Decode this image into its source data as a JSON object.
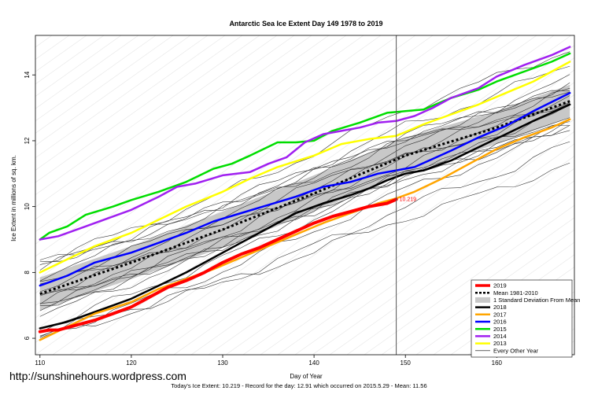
{
  "chart_data": {
    "type": "line",
    "title": "Antarctic Sea Ice Extent Day 149 1978 to 2019",
    "xlabel": "Day of Year",
    "ylabel": "Ice Extent in millions of sq. km.",
    "xlim": [
      109.5,
      168.5
    ],
    "ylim": [
      5.5,
      15.2
    ],
    "x_ticks": [
      110,
      120,
      130,
      140,
      150,
      160
    ],
    "y_ticks": [
      6,
      8,
      10,
      12,
      14
    ],
    "grid": true,
    "current_day": 149,
    "today_value_label": "10.219",
    "legend_position": "bottom-right",
    "legend": [
      {
        "label": "2019",
        "color": "#ff0000",
        "style": "thick"
      },
      {
        "label": "Mean 1981-2010",
        "color": "#000000",
        "style": "dashed"
      },
      {
        "label": "1 Standard Deviation From Mean",
        "color": "#c8c8c8",
        "style": "band"
      },
      {
        "label": "2018",
        "color": "#000000",
        "style": "solid"
      },
      {
        "label": "2017",
        "color": "#ffa500",
        "style": "solid"
      },
      {
        "label": "2016",
        "color": "#0000ff",
        "style": "solid"
      },
      {
        "label": "2015",
        "color": "#00dd00",
        "style": "solid"
      },
      {
        "label": "2014",
        "color": "#a020f0",
        "style": "solid"
      },
      {
        "label": "2013",
        "color": "#ffff00",
        "style": "solid"
      },
      {
        "label": "Every Other Year",
        "color": "#000000",
        "style": "thin"
      }
    ],
    "mean": {
      "x": [
        110,
        120,
        130,
        140,
        150,
        160,
        168
      ],
      "values": [
        7.35,
        8.3,
        9.3,
        10.4,
        11.55,
        12.4,
        13.2
      ]
    },
    "std_band": {
      "x": [
        110,
        120,
        130,
        140,
        150,
        160,
        168
      ],
      "lower": [
        6.85,
        7.8,
        8.75,
        9.85,
        11.0,
        11.9,
        12.7
      ],
      "upper": [
        7.85,
        8.8,
        9.85,
        10.95,
        12.1,
        12.9,
        13.7
      ]
    },
    "series": [
      {
        "name": "2015",
        "color": "#00dd00",
        "width": 2.5,
        "x": [
          110,
          111,
          113,
          115,
          118,
          120,
          123,
          126,
          129,
          131,
          133,
          136,
          138,
          140,
          142,
          145,
          148,
          150,
          152,
          155,
          158,
          160,
          163,
          166,
          168
        ],
        "values": [
          9.0,
          9.2,
          9.4,
          9.75,
          10.0,
          10.2,
          10.45,
          10.75,
          11.15,
          11.3,
          11.55,
          11.95,
          11.95,
          12.0,
          12.3,
          12.55,
          12.85,
          12.9,
          12.95,
          13.3,
          13.55,
          13.8,
          14.1,
          14.4,
          14.65
        ]
      },
      {
        "name": "2014",
        "color": "#a020f0",
        "width": 2.5,
        "x": [
          110,
          112,
          115,
          118,
          120,
          123,
          125,
          127,
          130,
          133,
          135,
          137,
          139,
          141,
          143,
          145,
          147,
          149,
          151,
          153,
          155,
          158,
          160,
          163,
          166,
          168
        ],
        "values": [
          9.0,
          9.1,
          9.4,
          9.7,
          9.9,
          10.3,
          10.6,
          10.7,
          10.95,
          11.05,
          11.3,
          11.5,
          11.95,
          12.2,
          12.3,
          12.4,
          12.55,
          12.6,
          12.75,
          13.0,
          13.3,
          13.6,
          13.95,
          14.3,
          14.6,
          14.85
        ]
      },
      {
        "name": "2013",
        "color": "#ffff00",
        "width": 2.5,
        "x": [
          110,
          113,
          116,
          120,
          123,
          126,
          130,
          133,
          136,
          140,
          143,
          146,
          149,
          152,
          155,
          158,
          161,
          164,
          168
        ],
        "values": [
          8.0,
          8.4,
          8.8,
          9.2,
          9.6,
          10.0,
          10.45,
          10.85,
          11.2,
          11.55,
          11.9,
          12.05,
          12.15,
          12.5,
          12.8,
          13.1,
          13.45,
          13.8,
          14.4
        ]
      },
      {
        "name": "2016",
        "color": "#0000ff",
        "width": 2.5,
        "x": [
          110,
          113,
          116,
          120,
          123,
          126,
          129,
          132,
          135,
          138,
          141,
          144,
          147,
          149,
          151,
          153,
          155,
          158,
          161,
          164,
          168
        ],
        "values": [
          7.6,
          7.9,
          8.3,
          8.6,
          8.9,
          9.2,
          9.55,
          9.8,
          10.05,
          10.3,
          10.6,
          10.75,
          11.0,
          11.1,
          11.2,
          11.45,
          11.7,
          12.1,
          12.45,
          12.9,
          13.45
        ]
      },
      {
        "name": "2018",
        "color": "#000000",
        "width": 2.5,
        "x": [
          110,
          113,
          116,
          120,
          123,
          126,
          129,
          132,
          135,
          138,
          141,
          144,
          146,
          148,
          150,
          152,
          155,
          158,
          161,
          164,
          168
        ],
        "values": [
          6.3,
          6.5,
          6.8,
          7.2,
          7.6,
          8.0,
          8.45,
          8.9,
          9.35,
          9.8,
          10.1,
          10.35,
          10.55,
          10.8,
          11.0,
          11.1,
          11.4,
          11.8,
          12.2,
          12.6,
          13.1
        ]
      },
      {
        "name": "2017",
        "color": "#ffa500",
        "width": 2.5,
        "x": [
          110,
          113,
          116,
          120,
          123,
          126,
          129,
          132,
          135,
          138,
          141,
          144,
          147,
          149,
          151,
          154,
          157,
          160,
          163,
          166,
          168
        ],
        "values": [
          5.95,
          6.35,
          6.75,
          7.1,
          7.5,
          7.8,
          8.1,
          8.45,
          8.8,
          9.15,
          9.5,
          9.8,
          10.1,
          10.25,
          10.45,
          10.85,
          11.3,
          11.75,
          12.1,
          12.4,
          12.65
        ]
      },
      {
        "name": "2019",
        "color": "#ff0000",
        "width": 4,
        "x": [
          110,
          111,
          112,
          114,
          116,
          118,
          120,
          122,
          124,
          126,
          128,
          130,
          132,
          134,
          136,
          138,
          140,
          142,
          144,
          146,
          148,
          149
        ],
        "values": [
          6.2,
          6.25,
          6.25,
          6.4,
          6.55,
          6.75,
          6.95,
          7.25,
          7.55,
          7.75,
          8.0,
          8.3,
          8.55,
          8.75,
          9.0,
          9.25,
          9.5,
          9.7,
          9.85,
          10.0,
          10.1,
          10.219
        ]
      }
    ]
  },
  "footer": {
    "url": "http://sunshinehours.wordpress.com",
    "summary": "Today's Ice Extent: 10.219  - Record for the day: 12.91 which occurred on 2015.5.29  - Mean: 11.56"
  }
}
